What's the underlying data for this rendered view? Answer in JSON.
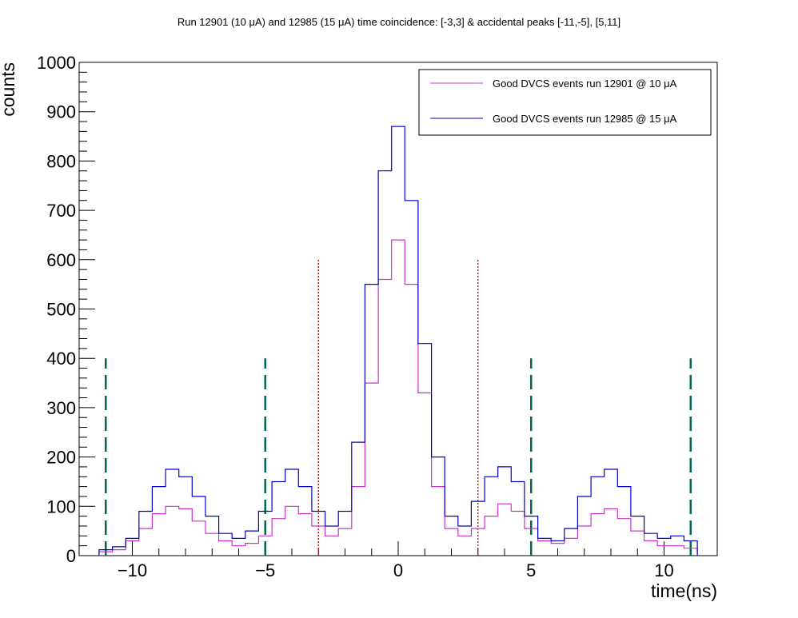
{
  "chart_data": {
    "type": "line",
    "title": "Run 12901 (10 μA) and 12985 (15 μA) time coincidence: [-3,3] & accidental peaks [-11,-5], [5,11]",
    "xlabel": "time(ns)",
    "ylabel": "counts",
    "xlim": [
      -12,
      12
    ],
    "ylim": [
      0,
      1000
    ],
    "x_ticks": [
      -10,
      -5,
      0,
      5,
      10
    ],
    "y_ticks": [
      0,
      100,
      200,
      300,
      400,
      500,
      600,
      700,
      800,
      900,
      1000
    ],
    "grid": false,
    "legend_position": "top-right",
    "x": [
      -11,
      -10.5,
      -10,
      -9.5,
      -9,
      -8.5,
      -8,
      -7.5,
      -7,
      -6.5,
      -6,
      -5.5,
      -5,
      -4.5,
      -4,
      -3.5,
      -3,
      -2.5,
      -2,
      -1.5,
      -1,
      -0.5,
      0,
      0.5,
      1,
      1.5,
      2,
      2.5,
      3,
      3.5,
      4,
      4.5,
      5,
      5.5,
      6,
      6.5,
      7,
      7.5,
      8,
      8.5,
      9,
      9.5,
      10,
      10.5,
      11
    ],
    "series": [
      {
        "name": "Good DVCS events run 12901 @ 10 μA",
        "color": "#cc33cc",
        "values": [
          8,
          12,
          30,
          55,
          85,
          100,
          95,
          70,
          45,
          30,
          20,
          25,
          40,
          75,
          100,
          85,
          60,
          40,
          55,
          140,
          350,
          560,
          640,
          550,
          330,
          140,
          55,
          40,
          55,
          80,
          105,
          90,
          55,
          30,
          25,
          35,
          60,
          85,
          95,
          75,
          50,
          30,
          20,
          20,
          15
        ]
      },
      {
        "name": "Good DVCS events run 12985 @ 15 μA",
        "color": "#0000cc",
        "values": [
          12,
          18,
          35,
          90,
          140,
          175,
          160,
          120,
          80,
          45,
          35,
          50,
          90,
          150,
          175,
          140,
          90,
          60,
          90,
          230,
          550,
          780,
          870,
          720,
          430,
          200,
          80,
          60,
          110,
          160,
          180,
          150,
          80,
          35,
          30,
          55,
          120,
          160,
          175,
          140,
          80,
          45,
          35,
          40,
          30
        ]
      }
    ],
    "vertical_markers": [
      {
        "type": "accidental-window",
        "x": [
          -11,
          -5,
          5,
          11
        ],
        "height": 400,
        "color": "#006655",
        "style": "dashed"
      },
      {
        "type": "coincidence-window",
        "x": [
          -3,
          3
        ],
        "height": 600,
        "color": "#cc0000",
        "style": "dotted"
      }
    ]
  }
}
